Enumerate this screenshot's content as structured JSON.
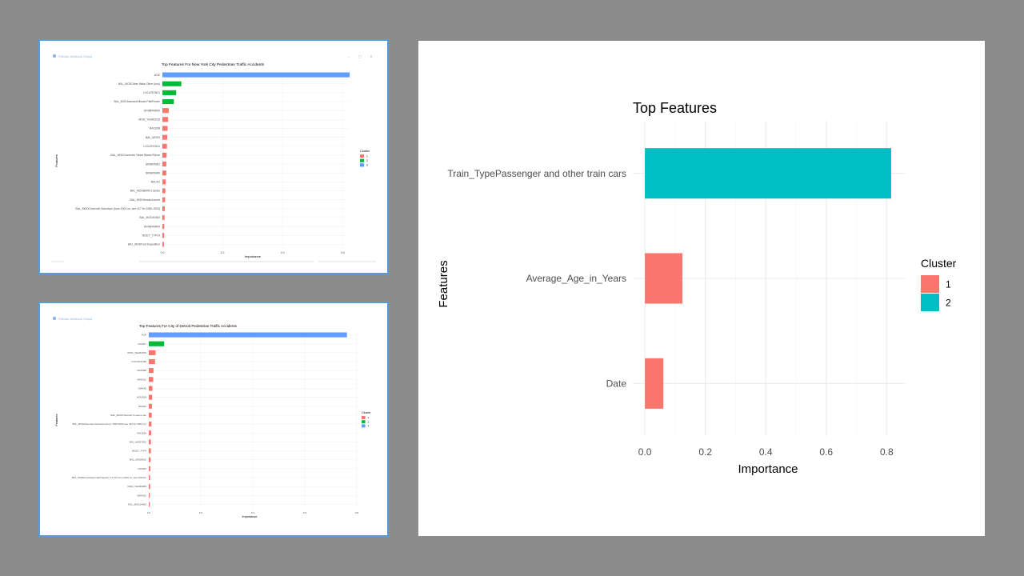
{
  "slide": {
    "background": "#8c8c8c",
    "panel_border": "#5b9bd5"
  },
  "windows": {
    "nyc": {
      "window_title": "RStudio: Notebook Output",
      "window_controls": [
        "–",
        "▢",
        "✕"
      ]
    },
    "detroit": {
      "window_title": "RStudio: Notebook Output"
    }
  },
  "chart_data": [
    {
      "type": "bar",
      "orientation": "horizontal",
      "title": "Top Features For New York City Pedestrian Traffic Accidents",
      "xlabel": "Importance",
      "ylabel": "Features",
      "xlim": [
        0,
        0.62
      ],
      "x_ticks": [
        "0.0",
        "0.2",
        "0.4",
        "0.6"
      ],
      "legend": {
        "title": "Cluster",
        "position": "right",
        "entries": [
          "1",
          "2",
          "3"
        ]
      },
      "colors": {
        "1": "#f8766d",
        "2": "#00ba38",
        "3": "#619cff"
      },
      "categories": [
        "AGE",
        "BAL_MODOther Make Other (bus)",
        "LOCATION21",
        "BAL_MODDaewoo/Nissan PathFinder",
        "DRIMPAIR90",
        "MOD_YEAR2015",
        "RACE98",
        "BAL_MOD0",
        "LOCATION11",
        "BAL_MODChevrolet Tahoe Blazer/Tahoe",
        "DRIMPAIR1",
        "DRIMPAIR9",
        "RACE2",
        "BAL_MODBMW 3 series",
        "BAL_MODHonda Accord",
        "BAL_MODChevrolet Suburban (from 2004 on; see 417 for 1950-2003)",
        "BAL_MOD40482",
        "DRIMPAIR99",
        "BODY_TYP14",
        "BAL_MODFord Expedition"
      ],
      "values": [
        0.623,
        0.063,
        0.046,
        0.038,
        0.021,
        0.019,
        0.017,
        0.016,
        0.015,
        0.014,
        0.013,
        0.013,
        0.011,
        0.01,
        0.009,
        0.008,
        0.007,
        0.006,
        0.006,
        0.005
      ],
      "clusters": [
        "3",
        "2",
        "2",
        "2",
        "1",
        "1",
        "1",
        "1",
        "1",
        "1",
        "1",
        "1",
        "1",
        "1",
        "1",
        "1",
        "1",
        "1",
        "1",
        "1"
      ]
    },
    {
      "type": "bar",
      "orientation": "horizontal",
      "title": "Top Features For City of Detroit Pedestrian Traffic Accidents",
      "xlabel": "Importance",
      "ylabel": "Features",
      "xlim": [
        0,
        0.8
      ],
      "x_ticks": [
        "0.0",
        "0.2",
        "0.4",
        "0.6",
        "0.8"
      ],
      "legend": {
        "title": "Cluster",
        "position": "right",
        "entries": [
          "1",
          "2",
          "3"
        ]
      },
      "colors": {
        "1": "#f8766d",
        "2": "#00ba38",
        "3": "#619cff"
      },
      "categories": [
        "AGE",
        "HOUR7",
        "MOD_YEAR2015",
        "LOCATION28",
        "MAK058",
        "MAK012",
        "MAK65",
        "HOUR19",
        "RACE2",
        "BAL_MODChevrolet S-series van",
        "BAL_MODChevrolet Suburban (from 1950-2003 see 422 for 2004 on)",
        "RACE99",
        "BAL_MOD7002",
        "BODY_TYP4",
        "BAL_MOD8010",
        "HOUR0",
        "BAL_MODHonda/Hyundai/Capstor X-S 5V from 2010 on; see 201/211",
        "MOD_YEAR9999",
        "MAK022",
        "BAL_MOD14403"
      ],
      "values": [
        0.762,
        0.059,
        0.026,
        0.024,
        0.018,
        0.017,
        0.014,
        0.013,
        0.012,
        0.011,
        0.01,
        0.009,
        0.008,
        0.008,
        0.007,
        0.006,
        0.005,
        0.005,
        0.004,
        0.004
      ],
      "clusters": [
        "3",
        "2",
        "1",
        "1",
        "1",
        "1",
        "1",
        "1",
        "1",
        "1",
        "1",
        "1",
        "1",
        "1",
        "1",
        "1",
        "1",
        "1",
        "1",
        "1"
      ]
    },
    {
      "type": "bar",
      "orientation": "horizontal",
      "title": "Top Features",
      "xlabel": "Importance",
      "ylabel": "Features",
      "xlim": [
        -0.04,
        0.86
      ],
      "x_ticks": [
        "0.0",
        "0.2",
        "0.4",
        "0.6",
        "0.8"
      ],
      "legend": {
        "title": "Cluster",
        "position": "right",
        "entries": [
          "1",
          "2"
        ]
      },
      "colors": {
        "1": "#f8766d",
        "2": "#00bfc4"
      },
      "categories": [
        "Train_TypePassenger and other train cars",
        "Average_Age_in_Years",
        "Date"
      ],
      "values": [
        0.815,
        0.124,
        0.061
      ],
      "clusters": [
        "2",
        "1",
        "1"
      ]
    }
  ]
}
